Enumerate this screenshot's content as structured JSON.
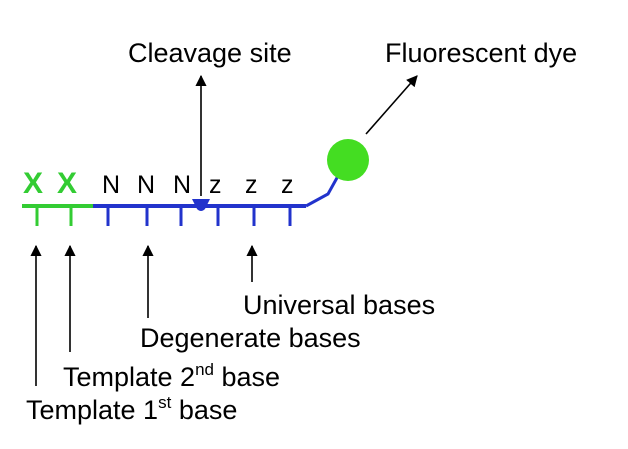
{
  "labels": {
    "cleavage_site": "Cleavage site",
    "fluorescent_dye": "Fluorescent dye",
    "universal_bases": "Universal bases",
    "degenerate_bases": "Degenerate bases",
    "template_2nd_prefix": "Template 2",
    "template_2nd_sup": "nd",
    "template_2nd_suffix": " base",
    "template_1st_prefix": "Template 1",
    "template_1st_sup": "st",
    "template_1st_suffix": " base"
  },
  "sequence": {
    "template_bases": [
      "X",
      "X"
    ],
    "degenerate_bases": [
      "N",
      "N",
      "N"
    ],
    "universal_bases": [
      "z",
      "z",
      "z"
    ]
  },
  "colors": {
    "template": "#33cc33",
    "backbone": "#2233cc",
    "dye": "#33cc33",
    "text": "#000000"
  }
}
